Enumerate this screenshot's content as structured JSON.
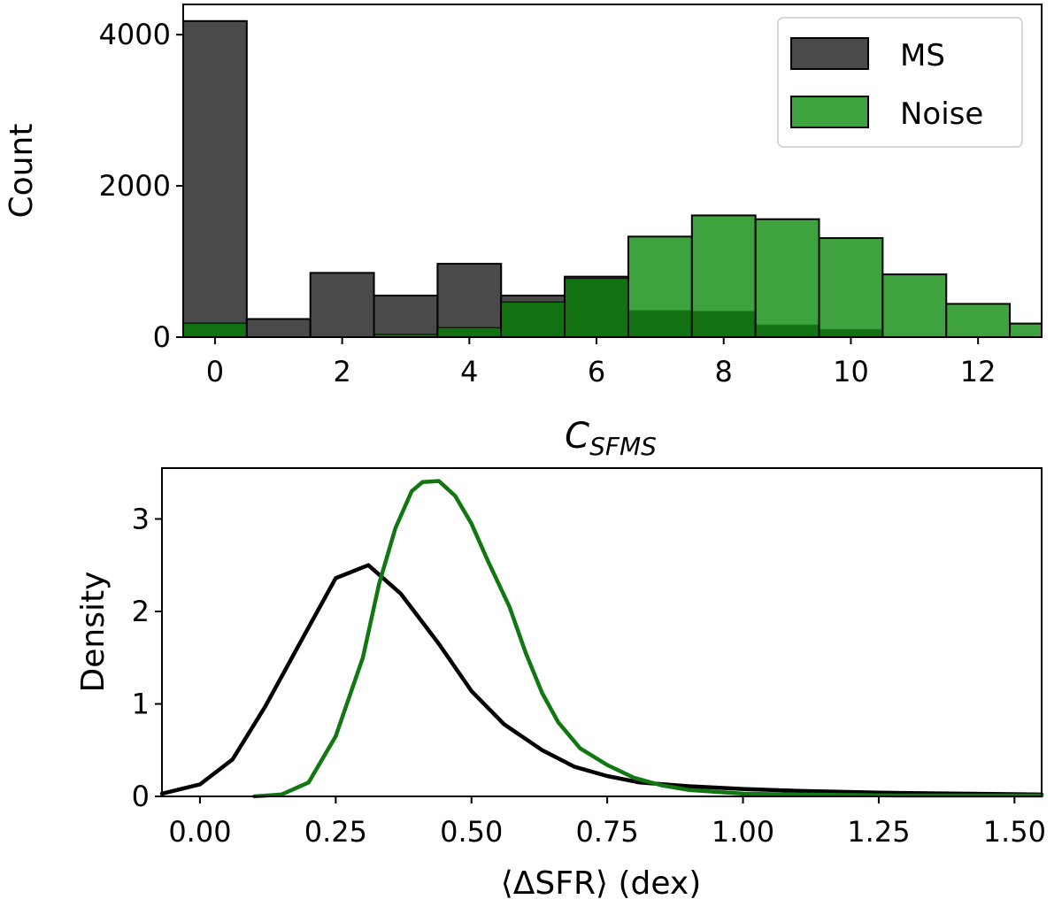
{
  "chart_data": [
    {
      "type": "bar",
      "subtype": "histogram",
      "title": "",
      "xlabel": "C_SFMS",
      "xlabel_main": "C",
      "xlabel_sub": "SFMS",
      "ylabel": "Count",
      "xlim": [
        -0.5,
        13
      ],
      "ylim": [
        0,
        4400
      ],
      "x_ticks": [
        0,
        2,
        4,
        6,
        8,
        10,
        12
      ],
      "y_ticks": [
        0,
        2000,
        4000
      ],
      "legend_position": "top-right",
      "bin_centers": [
        0,
        1,
        2,
        3,
        4,
        5,
        6,
        7,
        8,
        9,
        10,
        11,
        12,
        13
      ],
      "series": [
        {
          "name": "MS",
          "color": "#4a4a4a",
          "values": [
            4180,
            240,
            850,
            550,
            970,
            550,
            800,
            350,
            340,
            160,
            100,
            0,
            0,
            0
          ]
        },
        {
          "name": "Noise",
          "color": "#2e9a2e",
          "values": [
            180,
            0,
            0,
            30,
            120,
            460,
            770,
            1330,
            1610,
            1560,
            1310,
            830,
            440,
            180
          ]
        }
      ],
      "overlap_color": "#127212"
    },
    {
      "type": "line",
      "subtype": "density",
      "title": "",
      "xlabel": "⟨ΔSFR⟩ (dex)",
      "ylabel": "Density",
      "xlim": [
        -0.07,
        1.55
      ],
      "ylim": [
        0,
        3.55
      ],
      "x_ticks": [
        0.0,
        0.25,
        0.5,
        0.75,
        1.0,
        1.25,
        1.5
      ],
      "x_tick_labels": [
        "0.00",
        "0.25",
        "0.50",
        "0.75",
        "1.00",
        "1.25",
        "1.50"
      ],
      "y_ticks": [
        0,
        1,
        2,
        3
      ],
      "series": [
        {
          "name": "MS",
          "color": "#000000",
          "points": [
            [
              -0.07,
              0.03
            ],
            [
              0.0,
              0.13
            ],
            [
              0.06,
              0.4
            ],
            [
              0.12,
              0.97
            ],
            [
              0.19,
              1.72
            ],
            [
              0.25,
              2.36
            ],
            [
              0.31,
              2.5
            ],
            [
              0.37,
              2.19
            ],
            [
              0.44,
              1.65
            ],
            [
              0.5,
              1.14
            ],
            [
              0.56,
              0.78
            ],
            [
              0.63,
              0.5
            ],
            [
              0.69,
              0.32
            ],
            [
              0.75,
              0.22
            ],
            [
              0.81,
              0.15
            ],
            [
              0.9,
              0.11
            ],
            [
              1.0,
              0.08
            ],
            [
              1.1,
              0.06
            ],
            [
              1.25,
              0.04
            ],
            [
              1.4,
              0.03
            ],
            [
              1.55,
              0.02
            ]
          ]
        },
        {
          "name": "Noise",
          "color": "#117711",
          "points": [
            [
              0.1,
              0.0
            ],
            [
              0.15,
              0.02
            ],
            [
              0.2,
              0.15
            ],
            [
              0.25,
              0.65
            ],
            [
              0.3,
              1.5
            ],
            [
              0.33,
              2.3
            ],
            [
              0.36,
              2.9
            ],
            [
              0.39,
              3.3
            ],
            [
              0.41,
              3.4
            ],
            [
              0.44,
              3.41
            ],
            [
              0.47,
              3.25
            ],
            [
              0.5,
              2.95
            ],
            [
              0.53,
              2.55
            ],
            [
              0.57,
              2.05
            ],
            [
              0.6,
              1.55
            ],
            [
              0.63,
              1.12
            ],
            [
              0.66,
              0.8
            ],
            [
              0.7,
              0.52
            ],
            [
              0.75,
              0.34
            ],
            [
              0.8,
              0.2
            ],
            [
              0.85,
              0.12
            ],
            [
              0.9,
              0.07
            ],
            [
              1.0,
              0.03
            ],
            [
              1.1,
              0.02
            ],
            [
              1.3,
              0.01
            ],
            [
              1.55,
              0.01
            ]
          ]
        }
      ]
    }
  ]
}
